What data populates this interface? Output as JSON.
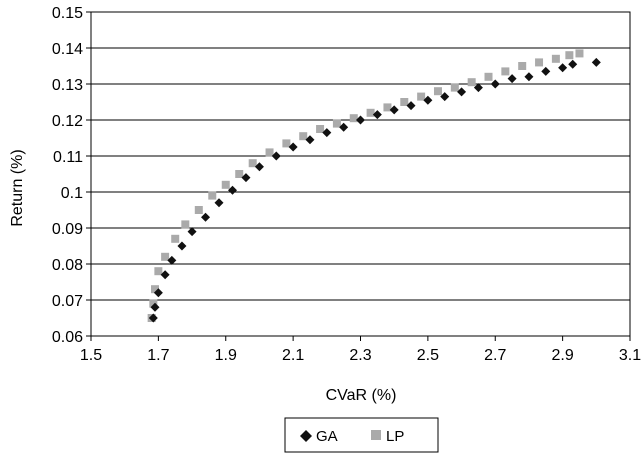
{
  "chart_data": {
    "type": "scatter",
    "title": "",
    "xlabel": "CVaR (%)",
    "ylabel": "Return (%)",
    "xlim": [
      1.5,
      3.1
    ],
    "ylim": [
      0.06,
      0.15
    ],
    "x_ticks": [
      "1.5",
      "1.7",
      "1.9",
      "2.1",
      "2.3",
      "2.5",
      "2.7",
      "2.9",
      "3.1"
    ],
    "y_ticks": [
      "0.06",
      "0.07",
      "0.08",
      "0.09",
      "0.1",
      "0.11",
      "0.12",
      "0.13",
      "0.14",
      "0.15"
    ],
    "grid": "horizontal",
    "legend_position": "bottom-center",
    "colors": {
      "GA": "#111111",
      "LP": "#aaaaaa"
    },
    "series": [
      {
        "name": "GA",
        "marker": "diamond",
        "x": [
          1.685,
          1.69,
          1.7,
          1.72,
          1.74,
          1.77,
          1.8,
          1.84,
          1.88,
          1.92,
          1.96,
          2.0,
          2.05,
          2.1,
          2.15,
          2.2,
          2.25,
          2.3,
          2.35,
          2.4,
          2.45,
          2.5,
          2.55,
          2.6,
          2.65,
          2.7,
          2.75,
          2.8,
          2.85,
          2.9,
          2.93,
          3.0
        ],
        "y": [
          0.065,
          0.068,
          0.072,
          0.077,
          0.081,
          0.085,
          0.089,
          0.093,
          0.097,
          0.1005,
          0.104,
          0.107,
          0.11,
          0.1125,
          0.1145,
          0.1165,
          0.118,
          0.12,
          0.1215,
          0.1228,
          0.124,
          0.1255,
          0.1265,
          0.1278,
          0.129,
          0.13,
          0.1315,
          0.132,
          0.1335,
          0.1345,
          0.1355,
          0.136
        ]
      },
      {
        "name": "LP",
        "marker": "square",
        "x": [
          1.68,
          1.685,
          1.69,
          1.7,
          1.72,
          1.75,
          1.78,
          1.82,
          1.86,
          1.9,
          1.94,
          1.98,
          2.03,
          2.08,
          2.13,
          2.18,
          2.23,
          2.28,
          2.33,
          2.38,
          2.43,
          2.48,
          2.53,
          2.58,
          2.63,
          2.68,
          2.73,
          2.78,
          2.83,
          2.88,
          2.92,
          2.95
        ],
        "y": [
          0.065,
          0.069,
          0.073,
          0.078,
          0.082,
          0.087,
          0.091,
          0.095,
          0.099,
          0.102,
          0.105,
          0.108,
          0.111,
          0.1135,
          0.1155,
          0.1175,
          0.119,
          0.1205,
          0.122,
          0.1235,
          0.125,
          0.1265,
          0.128,
          0.129,
          0.1305,
          0.132,
          0.1335,
          0.135,
          0.136,
          0.137,
          0.138,
          0.1385
        ]
      }
    ]
  }
}
